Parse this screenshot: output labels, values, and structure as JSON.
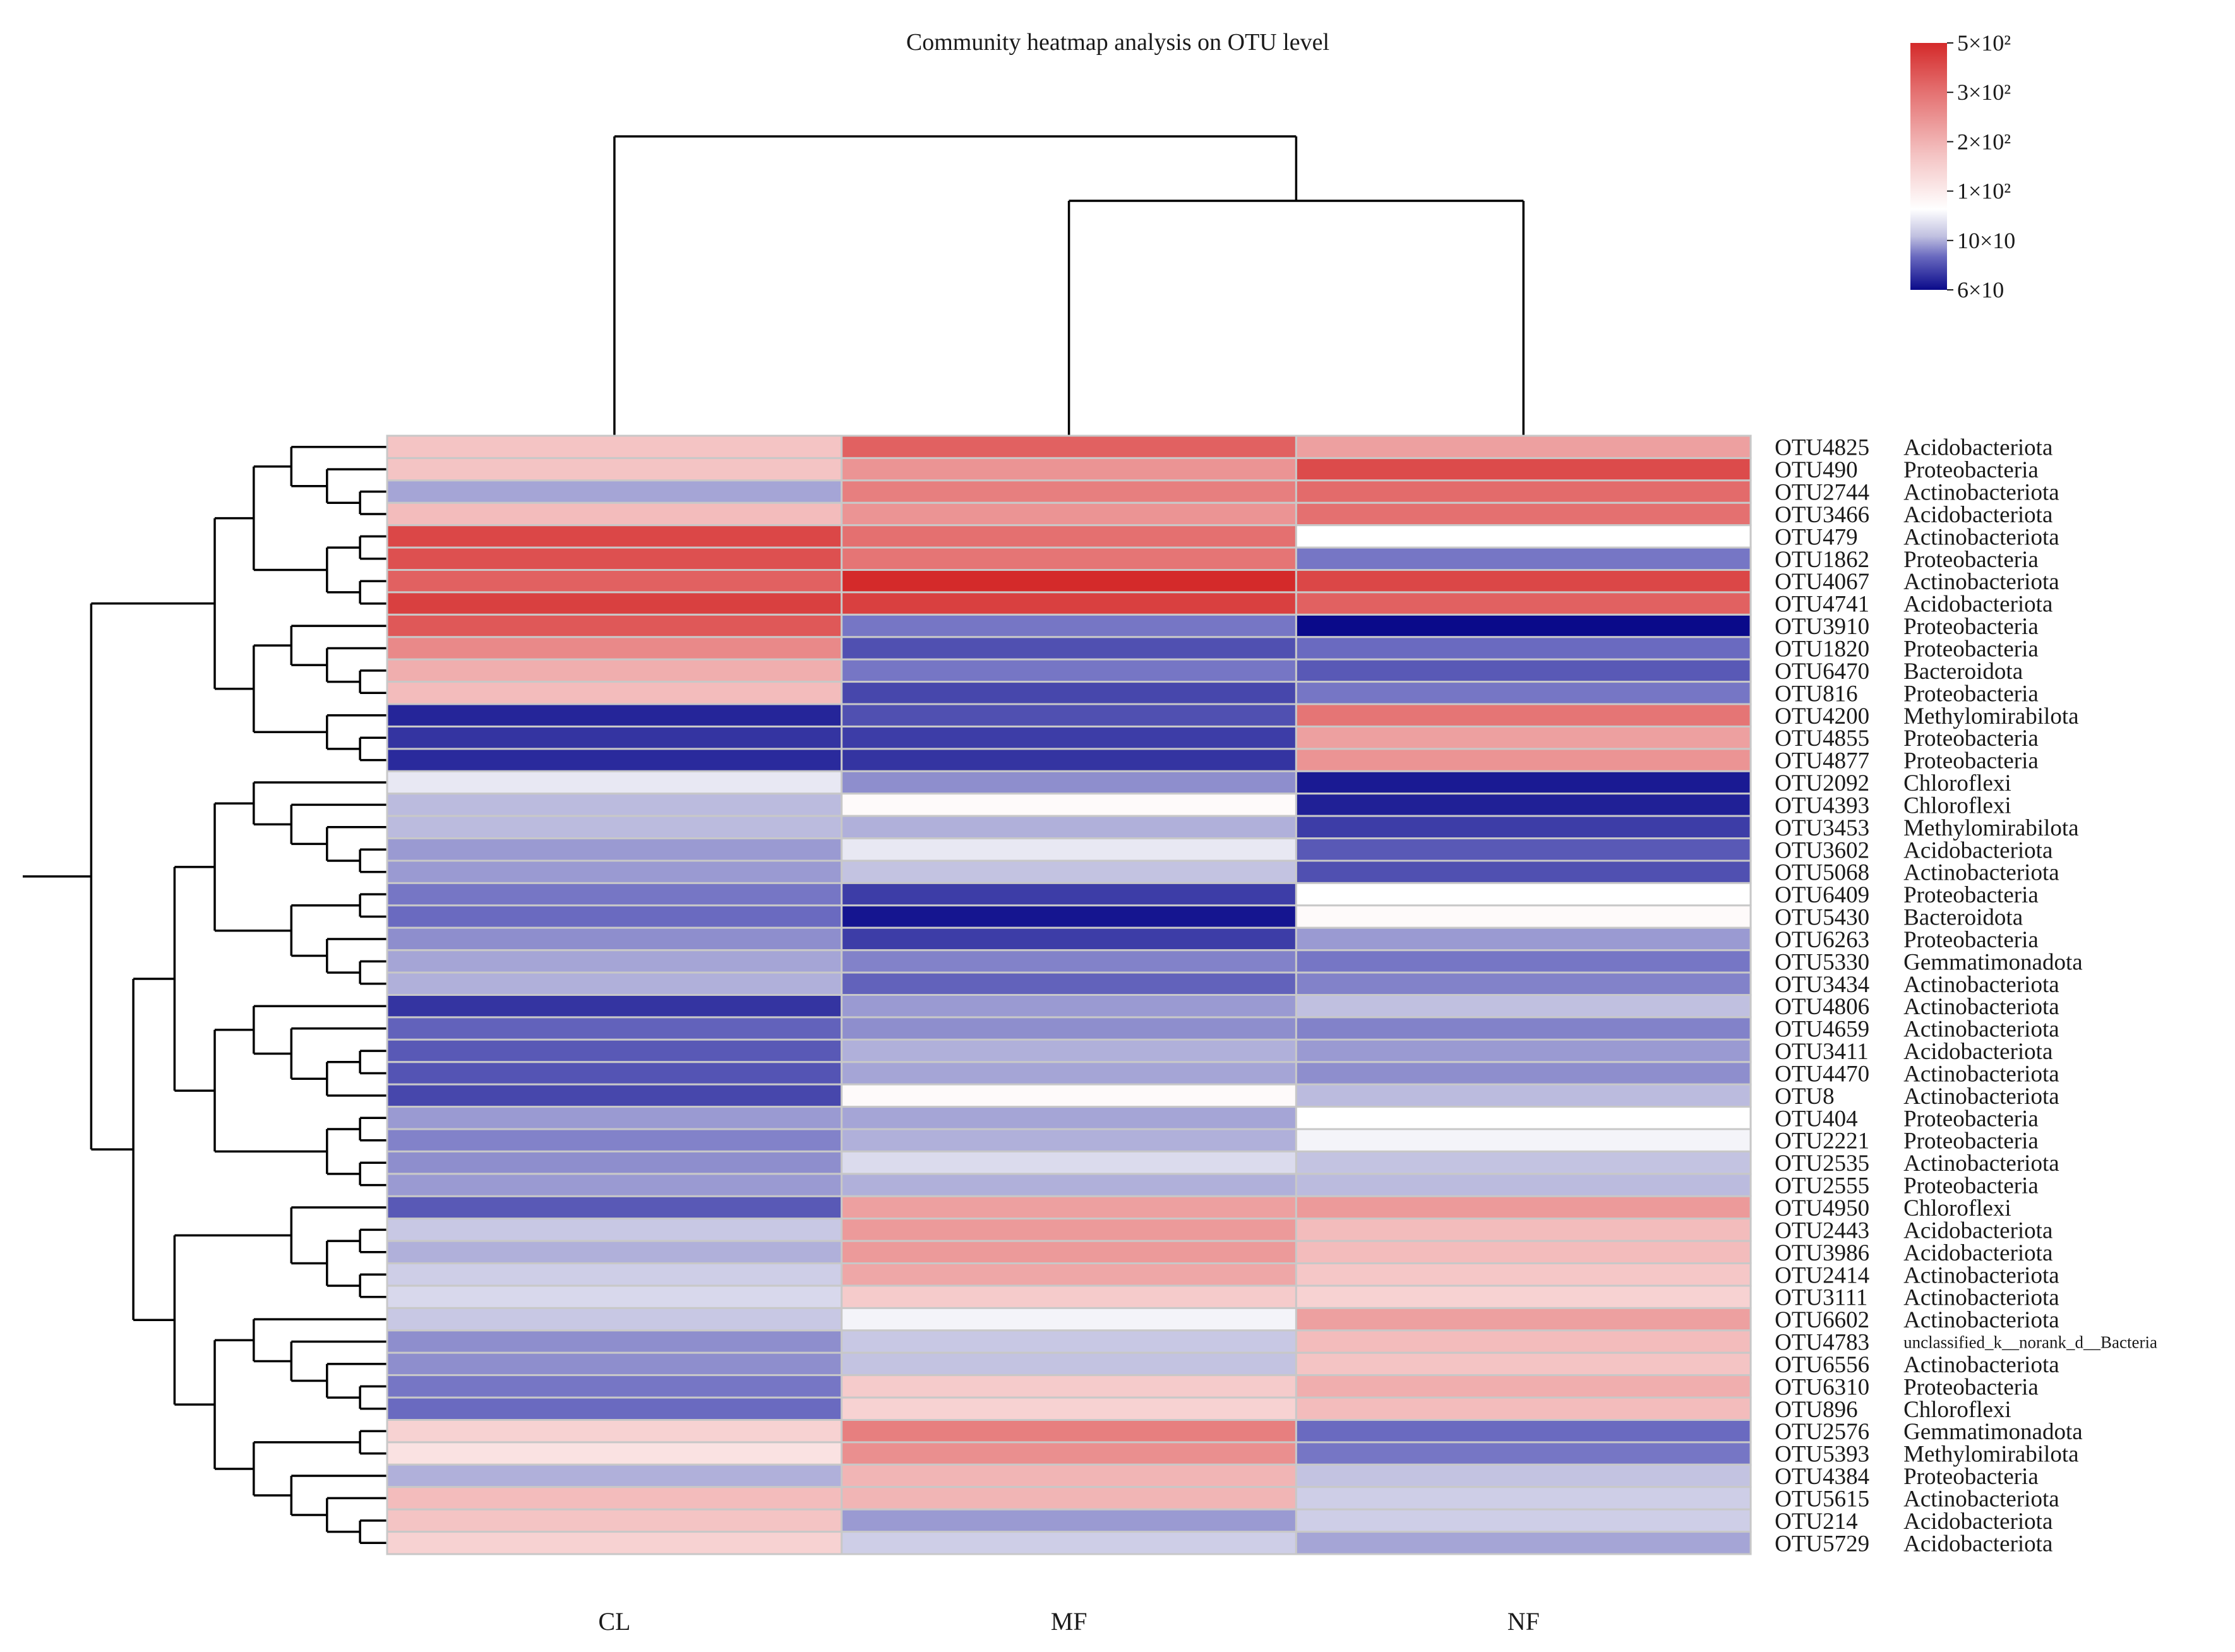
{
  "chart_data": {
    "type": "heatmap",
    "title": "Community heatmap analysis on OTU level",
    "columns": [
      "CL",
      "MF",
      "NF"
    ],
    "rows": [
      {
        "otu": "OTU4825",
        "phylum": "Acidobacteriota",
        "values": [
          190,
          360,
          240
        ]
      },
      {
        "otu": "OTU490",
        "phylum": "Proteobacteria",
        "values": [
          190,
          260,
          410
        ]
      },
      {
        "otu": "OTU2744",
        "phylum": "Actinobacteriota",
        "values": [
          90,
          300,
          340
        ]
      },
      {
        "otu": "OTU3466",
        "phylum": "Acidobacteriota",
        "values": [
          200,
          260,
          330
        ]
      },
      {
        "otu": "OTU479",
        "phylum": "Actinobacteriota",
        "values": [
          420,
          330,
          120
        ]
      },
      {
        "otu": "OTU1862",
        "phylum": "Proteobacteria",
        "values": [
          400,
          320,
          82
        ]
      },
      {
        "otu": "OTU4067",
        "phylum": "Actinobacteriota",
        "values": [
          360,
          500,
          420
        ]
      },
      {
        "otu": "OTU4741",
        "phylum": "Acidobacteriota",
        "values": [
          440,
          440,
          360
        ]
      },
      {
        "otu": "OTU3910",
        "phylum": "Proteobacteria",
        "values": [
          380,
          82,
          60
        ]
      },
      {
        "otu": "OTU1820",
        "phylum": "Proteobacteria",
        "values": [
          280,
          74,
          80
        ]
      },
      {
        "otu": "OTU6470",
        "phylum": "Bacteroidota",
        "values": [
          220,
          82,
          76
        ]
      },
      {
        "otu": "OTU816",
        "phylum": "Proteobacteria",
        "values": [
          200,
          72,
          82
        ]
      },
      {
        "otu": "OTU4200",
        "phylum": "Methylomirabilota",
        "values": [
          65,
          74,
          320
        ]
      },
      {
        "otu": "OTU4855",
        "phylum": "Proteobacteria",
        "values": [
          68,
          70,
          240
        ]
      },
      {
        "otu": "OTU4877",
        "phylum": "Proteobacteria",
        "values": [
          66,
          68,
          260
        ]
      },
      {
        "otu": "OTU2092",
        "phylum": "Chloroflexi",
        "values": [
          110,
          86,
          63
        ]
      },
      {
        "otu": "OTU4393",
        "phylum": "Chloroflexi",
        "values": [
          94,
          125,
          64
        ]
      },
      {
        "otu": "OTU3453",
        "phylum": "Methylomirabilota",
        "values": [
          94,
          92,
          70
        ]
      },
      {
        "otu": "OTU3602",
        "phylum": "Acidobacteriota",
        "values": [
          88,
          110,
          76
        ]
      },
      {
        "otu": "OTU5068",
        "phylum": "Actinobacteriota",
        "values": [
          88,
          96,
          74
        ]
      },
      {
        "otu": "OTU6409",
        "phylum": "Proteobacteria",
        "values": [
          82,
          70,
          120
        ]
      },
      {
        "otu": "OTU5430",
        "phylum": "Bacteroidota",
        "values": [
          80,
          62,
          125
        ]
      },
      {
        "otu": "OTU6263",
        "phylum": "Proteobacteria",
        "values": [
          86,
          70,
          88
        ]
      },
      {
        "otu": "OTU5330",
        "phylum": "Gemmatimonadota",
        "values": [
          90,
          84,
          82
        ]
      },
      {
        "otu": "OTU3434",
        "phylum": "Actinobacteriota",
        "values": [
          92,
          78,
          84
        ]
      },
      {
        "otu": "OTU4806",
        "phylum": "Actinobacteriota",
        "values": [
          68,
          88,
          95
        ]
      },
      {
        "otu": "OTU4659",
        "phylum": "Actinobacteriota",
        "values": [
          78,
          86,
          84
        ]
      },
      {
        "otu": "OTU3411",
        "phylum": "Acidobacteriota",
        "values": [
          76,
          92,
          88
        ]
      },
      {
        "otu": "OTU4470",
        "phylum": "Actinobacteriota",
        "values": [
          75,
          90,
          86
        ]
      },
      {
        "otu": "OTU8",
        "phylum": "Actinobacteriota",
        "values": [
          72,
          125,
          94
        ]
      },
      {
        "otu": "OTU404",
        "phylum": "Proteobacteria",
        "values": [
          88,
          90,
          120
        ]
      },
      {
        "otu": "OTU2221",
        "phylum": "Proteobacteria",
        "values": [
          84,
          92,
          115
        ]
      },
      {
        "otu": "OTU2535",
        "phylum": "Actinobacteriota",
        "values": [
          86,
          105,
          96
        ]
      },
      {
        "otu": "OTU2555",
        "phylum": "Proteobacteria",
        "values": [
          88,
          92,
          94
        ]
      },
      {
        "otu": "OTU4950",
        "phylum": "Chloroflexi",
        "values": [
          76,
          240,
          250
        ]
      },
      {
        "otu": "OTU2443",
        "phylum": "Acidobacteriota",
        "values": [
          98,
          250,
          200
        ]
      },
      {
        "otu": "OTU3986",
        "phylum": "Acidobacteriota",
        "values": [
          92,
          250,
          200
        ]
      },
      {
        "otu": "OTU2414",
        "phylum": "Actinobacteriota",
        "values": [
          100,
          230,
          185
        ]
      },
      {
        "otu": "OTU3111",
        "phylum": "Actinobacteriota",
        "values": [
          104,
          180,
          170
        ]
      },
      {
        "otu": "OTU6602",
        "phylum": "Actinobacteriota",
        "values": [
          98,
          115,
          240
        ]
      },
      {
        "otu": "OTU4783",
        "phylum": "unclassified_k__norank_d__Bacteria",
        "values": [
          86,
          98,
          200
        ]
      },
      {
        "otu": "OTU6556",
        "phylum": "Actinobacteriota",
        "values": [
          86,
          96,
          190
        ]
      },
      {
        "otu": "OTU6310",
        "phylum": "Proteobacteria",
        "values": [
          82,
          180,
          220
        ]
      },
      {
        "otu": "OTU896",
        "phylum": "Chloroflexi",
        "values": [
          80,
          170,
          200
        ]
      },
      {
        "otu": "OTU2576",
        "phylum": "Gemmatimonadota",
        "values": [
          170,
          300,
          80
        ]
      },
      {
        "otu": "OTU5393",
        "phylum": "Methylomirabilota",
        "values": [
          150,
          270,
          82
        ]
      },
      {
        "otu": "OTU4384",
        "phylum": "Proteobacteria",
        "values": [
          92,
          210,
          96
        ]
      },
      {
        "otu": "OTU5615",
        "phylum": "Actinobacteriota",
        "values": [
          200,
          210,
          100
        ]
      },
      {
        "otu": "OTU214",
        "phylum": "Acidobacteriota",
        "values": [
          190,
          88,
          100
        ]
      },
      {
        "otu": "OTU5729",
        "phylum": "Acidobacteriota",
        "values": [
          170,
          100,
          90
        ]
      }
    ],
    "color_scale": {
      "colors": [
        "#0a0a8a",
        "#6a6ac0",
        "#c0c0e0",
        "#ffffff",
        "#f4c4c4",
        "#e47070",
        "#d42a2a"
      ],
      "breaks": [
        60,
        80,
        95,
        120,
        190,
        330,
        500
      ]
    },
    "legend": {
      "position": "top-right",
      "labels": [
        "5×10²",
        "3×10²",
        "2×10²",
        "1×10²",
        "10×10",
        "6×10"
      ],
      "label_values": [
        500,
        300,
        200,
        100,
        100,
        60
      ]
    }
  }
}
